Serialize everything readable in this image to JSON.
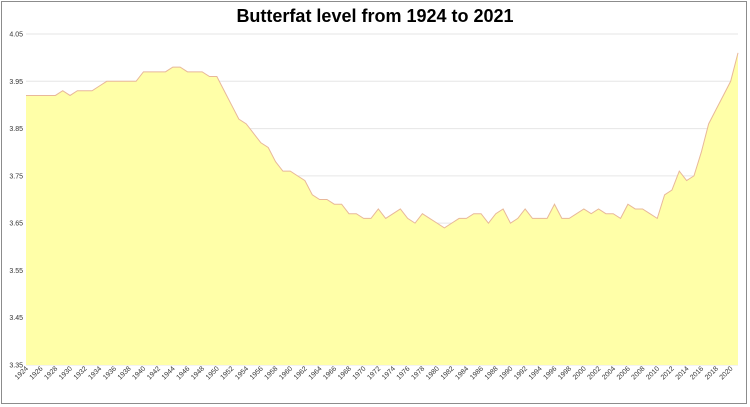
{
  "chart_data": {
    "type": "area",
    "title": "Butterfat level from 1924 to 2021",
    "xlabel": "",
    "ylabel": "",
    "ylim": [
      3.35,
      4.05
    ],
    "yticks": [
      "4.05",
      "3.95",
      "3.85",
      "3.75",
      "3.65",
      "3.55",
      "3.45",
      "3.35"
    ],
    "x_tick_labels": [
      "1924",
      "1926",
      "1928",
      "1930",
      "1932",
      "1934",
      "1936",
      "1938",
      "1940",
      "1942",
      "1944",
      "1946",
      "1948",
      "1950",
      "1952",
      "1954",
      "1956",
      "1958",
      "1960",
      "1962",
      "1964",
      "1966",
      "1968",
      "1970",
      "1972",
      "1974",
      "1976",
      "1978",
      "1980",
      "1982",
      "1984",
      "1986",
      "1988",
      "1990",
      "1992",
      "1994",
      "1996",
      "1998",
      "2000",
      "2002",
      "2004",
      "2006",
      "2008",
      "2010",
      "2012",
      "2014",
      "2016",
      "2018",
      "2020"
    ],
    "grid": "horizontal",
    "legend": "none",
    "fill_color": "#ffffa8",
    "line_color": "#e8b89a",
    "x": [
      1924,
      1925,
      1926,
      1927,
      1928,
      1929,
      1930,
      1931,
      1932,
      1933,
      1934,
      1935,
      1936,
      1937,
      1938,
      1939,
      1940,
      1941,
      1942,
      1943,
      1944,
      1945,
      1946,
      1947,
      1948,
      1949,
      1950,
      1951,
      1952,
      1953,
      1954,
      1955,
      1956,
      1957,
      1958,
      1959,
      1960,
      1961,
      1962,
      1963,
      1964,
      1965,
      1966,
      1967,
      1968,
      1969,
      1970,
      1971,
      1972,
      1973,
      1974,
      1975,
      1976,
      1977,
      1978,
      1979,
      1980,
      1981,
      1982,
      1983,
      1984,
      1985,
      1986,
      1987,
      1988,
      1989,
      1990,
      1991,
      1992,
      1993,
      1994,
      1995,
      1996,
      1997,
      1998,
      1999,
      2000,
      2001,
      2002,
      2003,
      2004,
      2005,
      2006,
      2007,
      2008,
      2009,
      2010,
      2011,
      2012,
      2013,
      2014,
      2015,
      2016,
      2017,
      2018,
      2019,
      2020,
      2021
    ],
    "values": [
      3.92,
      3.92,
      3.92,
      3.92,
      3.92,
      3.93,
      3.92,
      3.93,
      3.93,
      3.93,
      3.94,
      3.95,
      3.95,
      3.95,
      3.95,
      3.95,
      3.97,
      3.97,
      3.97,
      3.97,
      3.98,
      3.98,
      3.97,
      3.97,
      3.97,
      3.96,
      3.96,
      3.93,
      3.9,
      3.87,
      3.86,
      3.84,
      3.82,
      3.81,
      3.78,
      3.76,
      3.76,
      3.75,
      3.74,
      3.71,
      3.7,
      3.7,
      3.69,
      3.69,
      3.67,
      3.67,
      3.66,
      3.66,
      3.68,
      3.66,
      3.67,
      3.68,
      3.66,
      3.65,
      3.67,
      3.66,
      3.65,
      3.64,
      3.65,
      3.66,
      3.66,
      3.67,
      3.67,
      3.65,
      3.67,
      3.68,
      3.65,
      3.66,
      3.68,
      3.66,
      3.66,
      3.66,
      3.69,
      3.66,
      3.66,
      3.67,
      3.68,
      3.67,
      3.68,
      3.67,
      3.67,
      3.66,
      3.69,
      3.68,
      3.68,
      3.67,
      3.66,
      3.71,
      3.72,
      3.76,
      3.74,
      3.75,
      3.8,
      3.86,
      3.89,
      3.92,
      3.95,
      4.01
    ]
  }
}
